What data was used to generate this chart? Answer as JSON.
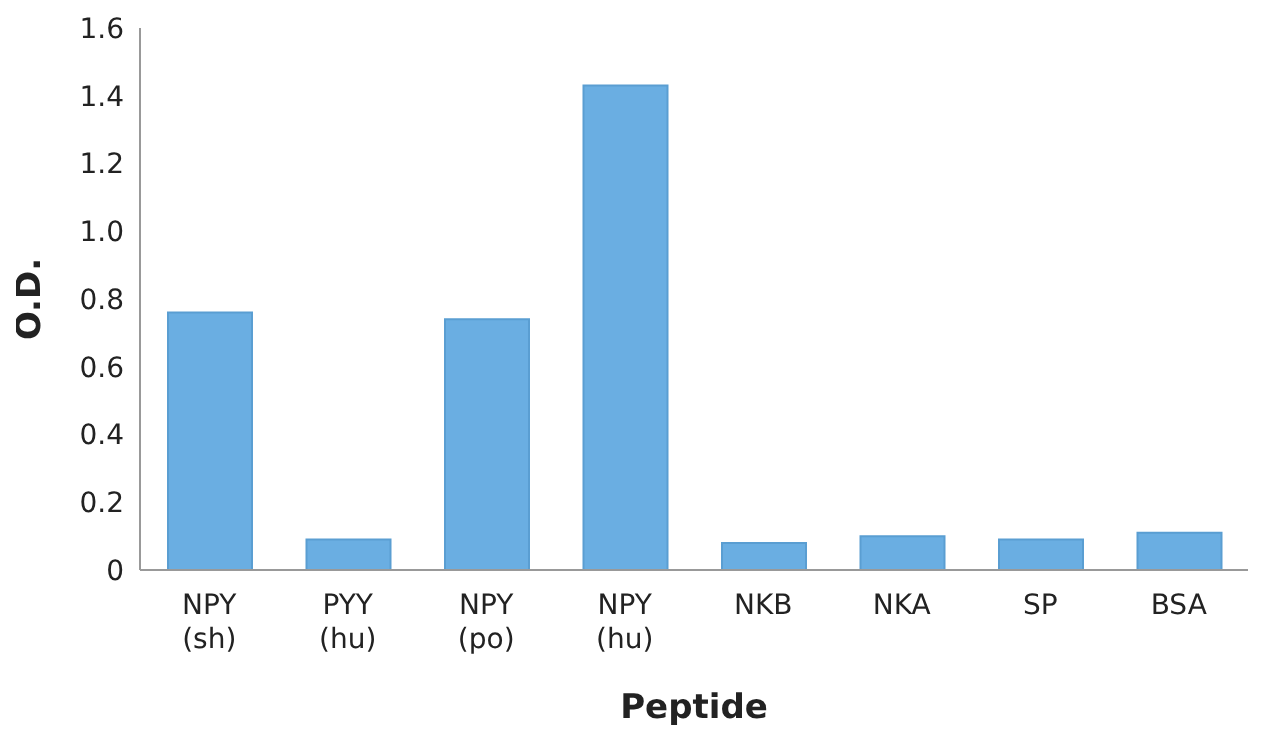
{
  "chart_data": {
    "type": "bar",
    "xlabel": "Peptide",
    "ylabel": "O.D.",
    "categories": [
      "NPY (sh)",
      "PYY (hu)",
      "NPY (po)",
      "NPY (hu)",
      "NKB",
      "NKA",
      "SP",
      "BSA"
    ],
    "values": [
      0.76,
      0.09,
      0.74,
      1.43,
      0.08,
      0.1,
      0.09,
      0.11
    ],
    "color": "#6aaee2",
    "ylim": [
      0,
      1.6
    ],
    "yticks": [
      0,
      0.2,
      0.4,
      0.6,
      0.8,
      {
        "value": 1,
        "label": "1.0"
      },
      1.2,
      1.4,
      1.6
    ],
    "grid": false
  }
}
